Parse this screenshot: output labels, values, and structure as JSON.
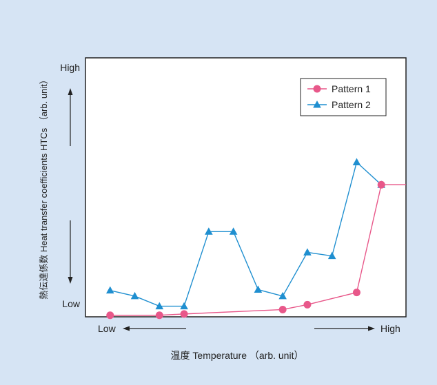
{
  "chart_data": {
    "type": "line",
    "x": [
      1,
      2,
      3,
      4,
      5,
      6,
      7,
      8,
      9,
      10,
      11,
      12,
      13
    ],
    "series": [
      {
        "name": "Pattern 1",
        "marker": "circle",
        "color": "#e8588a",
        "points": [
          [
            1,
            0.006
          ],
          [
            3,
            0.006
          ],
          [
            4,
            0.011
          ],
          [
            8,
            0.028
          ],
          [
            9,
            0.047
          ],
          [
            11,
            0.094
          ],
          [
            12,
            0.51
          ],
          [
            13,
            0.51
          ]
        ]
      },
      {
        "name": "Pattern 2",
        "marker": "triangle",
        "color": "#1f8fd0",
        "points": [
          [
            1,
            0.102
          ],
          [
            2,
            0.08
          ],
          [
            3,
            0.041
          ],
          [
            4,
            0.041
          ],
          [
            5,
            0.329
          ],
          [
            6,
            0.329
          ],
          [
            7,
            0.105
          ],
          [
            8,
            0.08
          ],
          [
            9,
            0.249
          ],
          [
            10,
            0.235
          ],
          [
            11,
            0.597
          ],
          [
            12,
            0.51
          ],
          [
            13,
            0.51
          ]
        ]
      }
    ],
    "xlim": [
      0,
      13
    ],
    "ylim": [
      0,
      1
    ],
    "ylabel": "熱伝達係数 Heat transfer coefficients HTCs （arb. unit）",
    "xlabel": "温度  Temperature （arb. unit）",
    "y_high": "High",
    "y_low": "Low",
    "x_low": "Low",
    "x_high": "High",
    "legend_position": "top-right",
    "grid": false
  },
  "colors": {
    "background": "#d6e4f4",
    "plot_area": "#ffffff",
    "pattern1": "#e8588a",
    "pattern2": "#1f8fd0"
  }
}
